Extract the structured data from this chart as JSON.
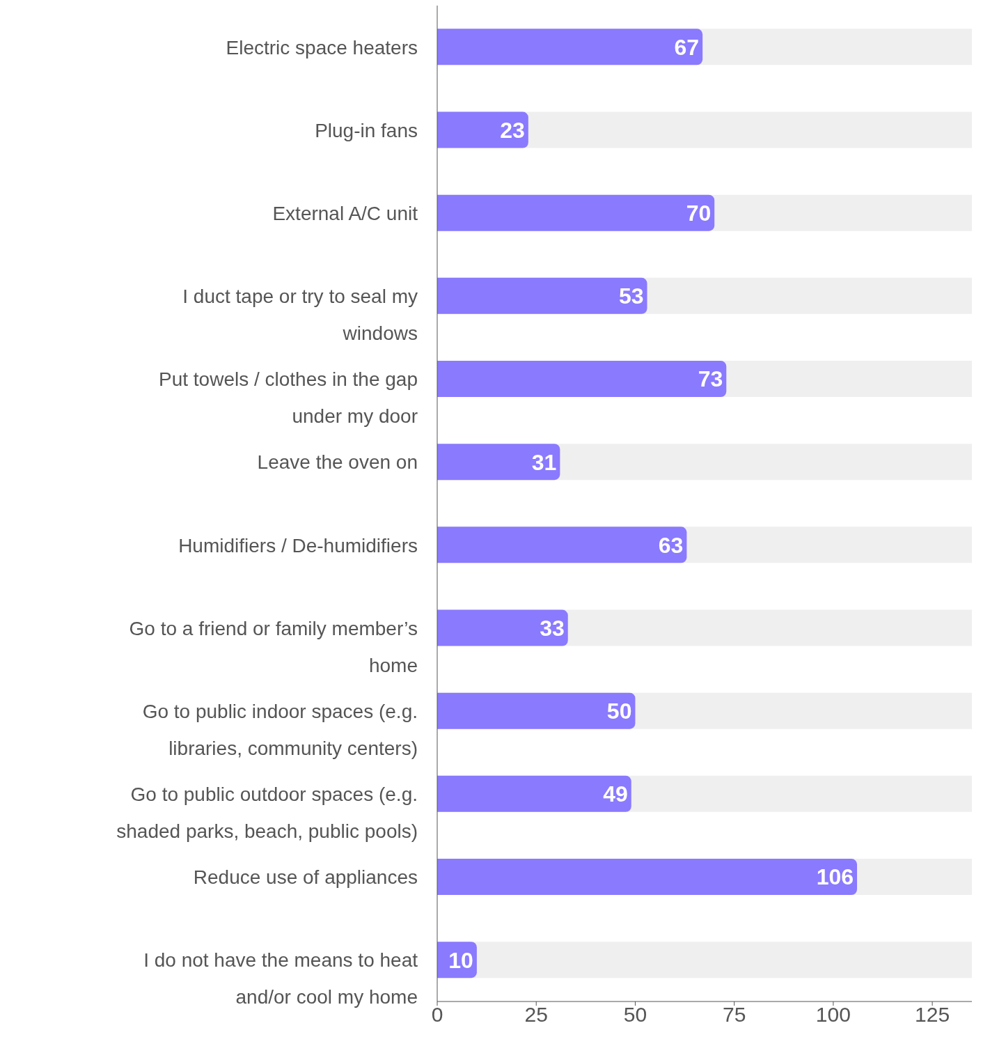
{
  "chart_data": {
    "type": "bar",
    "orientation": "horizontal",
    "categories": [
      "Electric space heaters",
      "Plug-in fans",
      "External A/C unit",
      "I duct tape or try to seal my windows",
      "Put towels / clothes in the gap under my door",
      "Leave the oven on",
      "Humidifiers / De-humidifiers",
      "Go to a friend or family member’s home",
      "Go to public indoor spaces (e.g. libraries, community centers)",
      "Go to public outdoor spaces (e.g. shaded parks, beach, public pools)",
      "Reduce use of appliances",
      "I do not have the means to heat and/or cool my home"
    ],
    "values": [
      67,
      23,
      70,
      53,
      73,
      31,
      63,
      33,
      50,
      49,
      106,
      10
    ],
    "color": "#8a7afe",
    "xlim": [
      0,
      135
    ],
    "xticks": [
      0,
      25,
      50,
      75,
      100,
      125
    ],
    "data_labels": true
  }
}
